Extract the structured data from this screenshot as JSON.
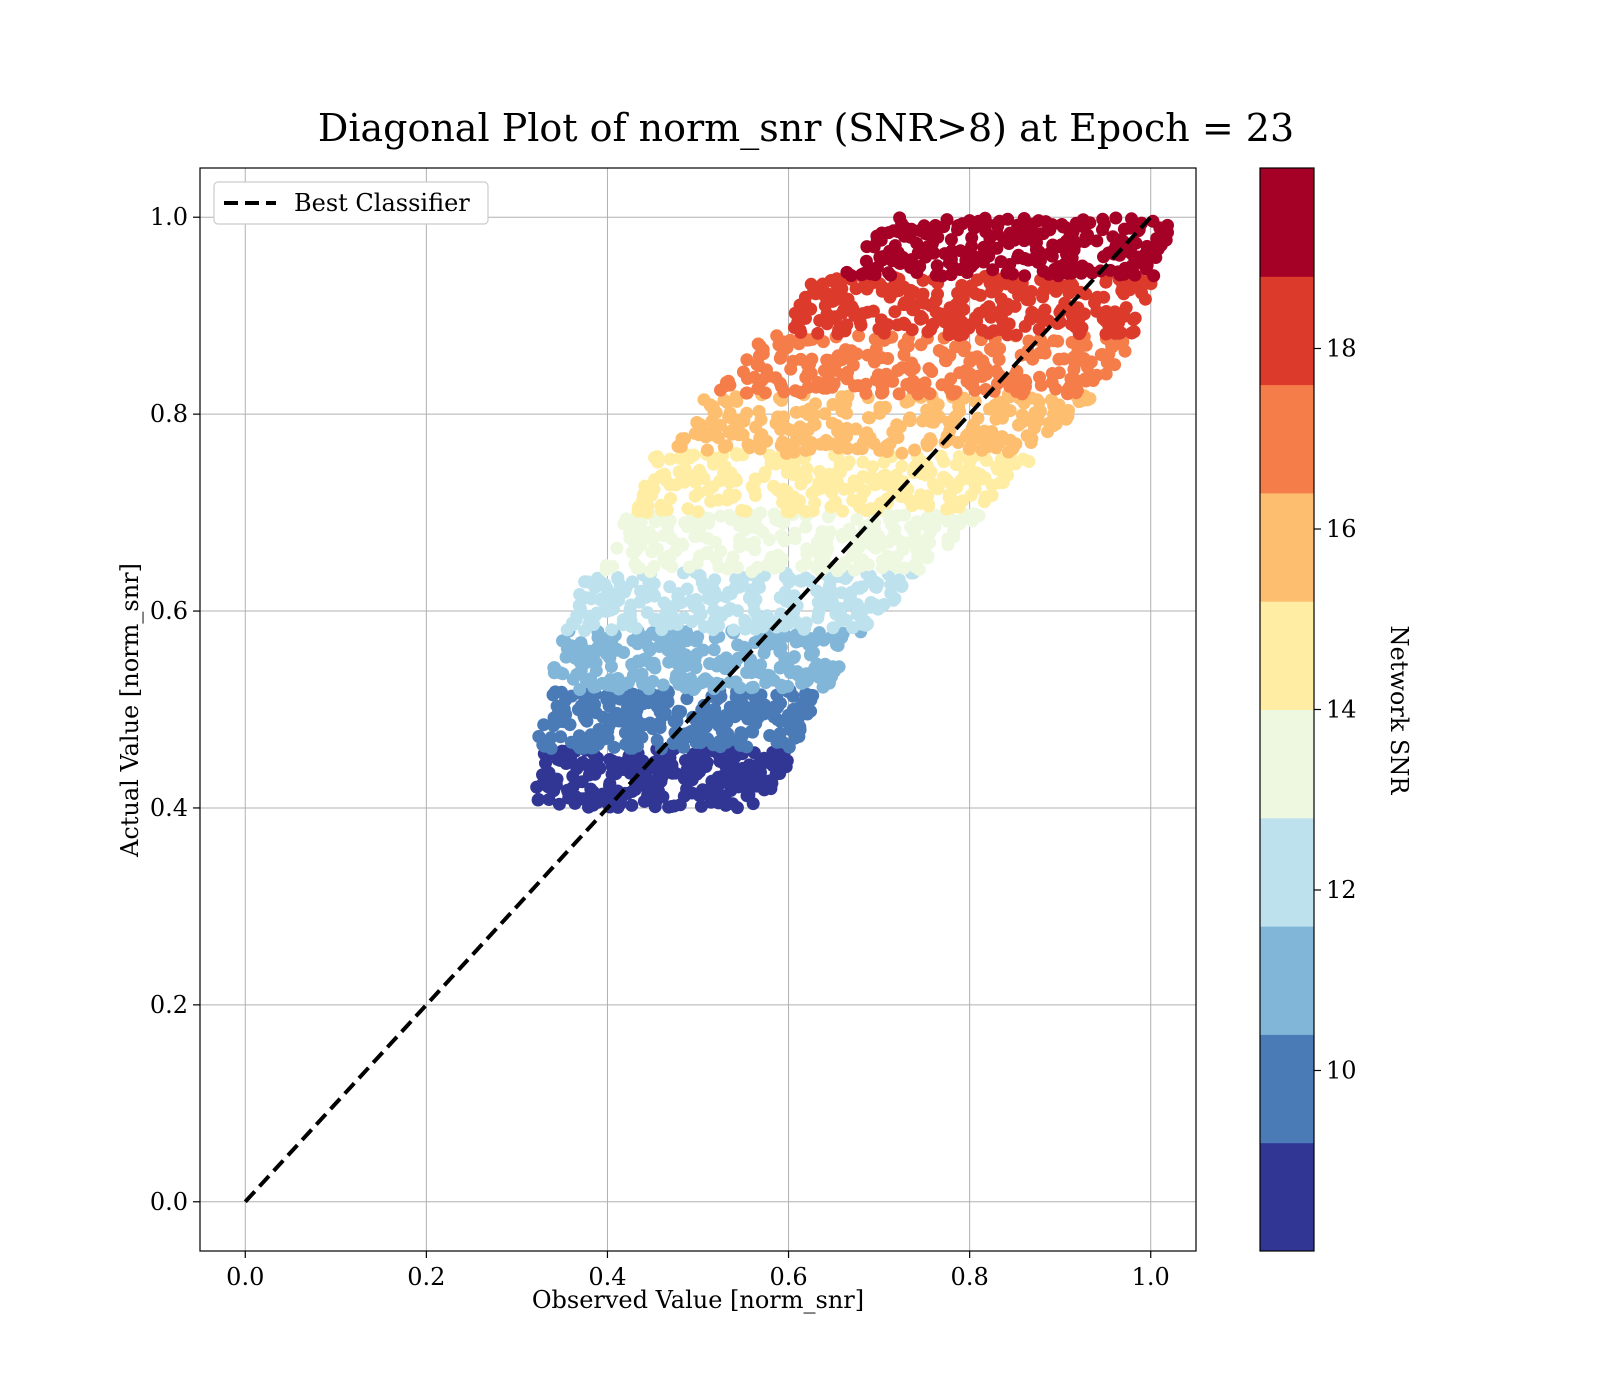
{
  "chart_data": {
    "type": "scatter",
    "title": "Diagonal Plot of norm_snr (SNR>8) at Epoch = 23",
    "xlabel": "Observed Value [norm_snr]",
    "ylabel": "Actual Value [norm_snr]",
    "xlim": [
      -0.05,
      1.05
    ],
    "ylim": [
      -0.05,
      1.05
    ],
    "x_ticks": [
      0.0,
      0.2,
      0.4,
      0.6,
      0.8,
      1.0
    ],
    "y_ticks": [
      0.0,
      0.2,
      0.4,
      0.6,
      0.8,
      1.0
    ],
    "x_tick_labels": [
      "0.0",
      "0.2",
      "0.4",
      "0.6",
      "0.8",
      "1.0"
    ],
    "y_tick_labels": [
      "0.0",
      "0.2",
      "0.4",
      "0.6",
      "0.8",
      "1.0"
    ],
    "grid": true,
    "legend": {
      "position": "top-left",
      "entries": [
        "Best Classifier"
      ]
    },
    "reference_line": {
      "name": "Best Classifier",
      "style": "dashed",
      "color": "#000000",
      "x": [
        0.0,
        1.0
      ],
      "y": [
        0.0,
        1.0
      ]
    },
    "colorbar": {
      "label": "Network SNR",
      "range": [
        8,
        20
      ],
      "ticks": [
        10,
        12,
        14,
        16,
        18
      ],
      "tick_labels": [
        "10",
        "12",
        "14",
        "16",
        "18"
      ],
      "colormap": "RdYlBu_r",
      "levels": [
        {
          "from": 8.0,
          "to": 9.2,
          "color": "#313695"
        },
        {
          "from": 9.2,
          "to": 10.4,
          "color": "#4a7bb7"
        },
        {
          "from": 10.4,
          "to": 11.6,
          "color": "#82b6d8"
        },
        {
          "from": 11.6,
          "to": 12.8,
          "color": "#bde2ee"
        },
        {
          "from": 12.8,
          "to": 14.0,
          "color": "#eef8e0"
        },
        {
          "from": 14.0,
          "to": 15.2,
          "color": "#feeda2"
        },
        {
          "from": 15.2,
          "to": 16.4,
          "color": "#fdbe70"
        },
        {
          "from": 16.4,
          "to": 17.6,
          "color": "#f57d4a"
        },
        {
          "from": 17.6,
          "to": 18.8,
          "color": "#dc3b2c"
        },
        {
          "from": 18.8,
          "to": 20.0,
          "color": "#a50026"
        }
      ]
    },
    "bands": [
      {
        "y": [
          0.4,
          0.46
        ],
        "x_left": [
          0.355,
          0.37
        ],
        "x_right": [
          0.53,
          0.58
        ],
        "color": "#313695"
      },
      {
        "y": [
          0.46,
          0.52
        ],
        "x_left": [
          0.36,
          0.375
        ],
        "x_right": [
          0.57,
          0.61
        ],
        "color": "#4a7bb7"
      },
      {
        "y": [
          0.52,
          0.58
        ],
        "x_left": [
          0.37,
          0.39
        ],
        "x_right": [
          0.61,
          0.65
        ],
        "color": "#82b6d8"
      },
      {
        "y": [
          0.58,
          0.64
        ],
        "x_left": [
          0.38,
          0.42
        ],
        "x_right": [
          0.65,
          0.71
        ],
        "color": "#bde2ee"
      },
      {
        "y": [
          0.64,
          0.7
        ],
        "x_left": [
          0.43,
          0.46
        ],
        "x_right": [
          0.71,
          0.78
        ],
        "color": "#eef8e0"
      },
      {
        "y": [
          0.7,
          0.76
        ],
        "x_left": [
          0.47,
          0.49
        ],
        "x_right": [
          0.77,
          0.84
        ],
        "color": "#feeda2"
      },
      {
        "y": [
          0.76,
          0.82
        ],
        "x_left": [
          0.51,
          0.55
        ],
        "x_right": [
          0.83,
          0.91
        ],
        "color": "#fdbe70"
      },
      {
        "y": [
          0.82,
          0.88
        ],
        "x_left": [
          0.56,
          0.61
        ],
        "x_right": [
          0.9,
          0.95
        ],
        "color": "#f57d4a"
      },
      {
        "y": [
          0.88,
          0.94
        ],
        "x_left": [
          0.63,
          0.67
        ],
        "x_right": [
          0.95,
          0.97
        ],
        "color": "#dc3b2c"
      },
      {
        "y": [
          0.94,
          1.0
        ],
        "x_left": [
          0.7,
          0.75
        ],
        "x_right": [
          0.97,
          0.99
        ],
        "color": "#a50026"
      }
    ]
  }
}
